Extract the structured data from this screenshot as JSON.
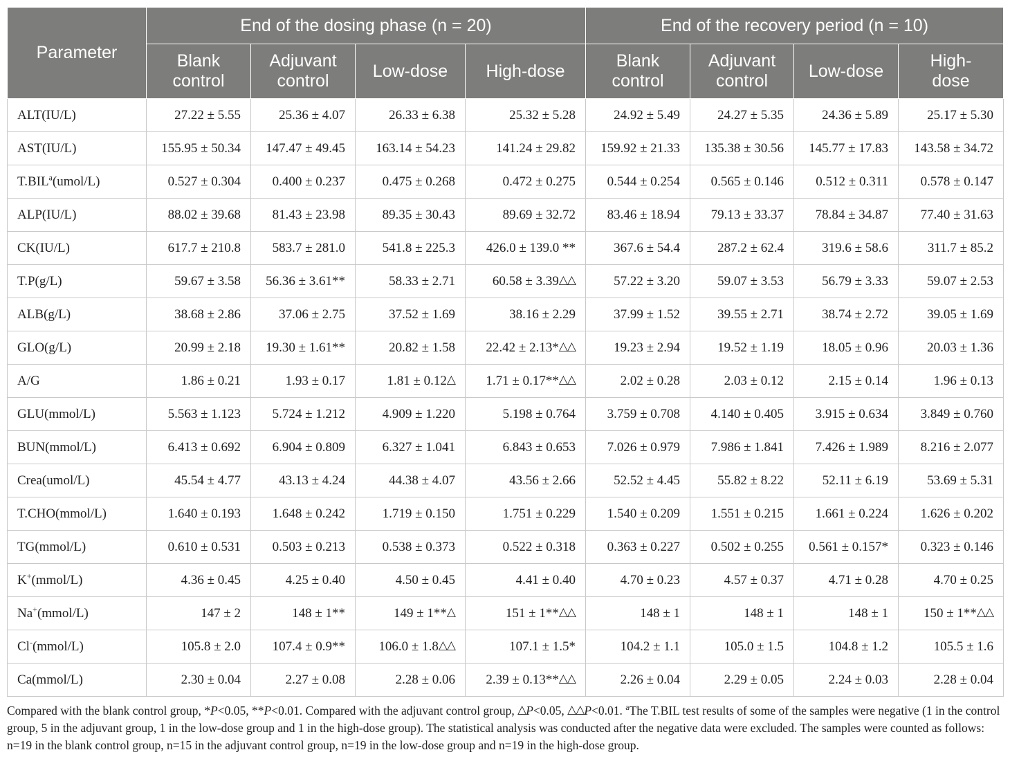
{
  "table": {
    "param_header": "Parameter",
    "group_headers": [
      "End of the dosing phase (n = 20)",
      "End of the recovery period (n = 10)"
    ],
    "sub_headers": [
      [
        "Blank",
        "control"
      ],
      [
        "Adjuvant",
        "control"
      ],
      [
        "Low-dose"
      ],
      [
        "High-dose"
      ],
      [
        "Blank",
        "control"
      ],
      [
        "Adjuvant",
        "control"
      ],
      [
        "Low-dose"
      ],
      [
        "High-",
        "dose"
      ]
    ],
    "rows": [
      {
        "param": "ALT(IU/L)",
        "cells": [
          {
            "v": "27.22 ± 5.55"
          },
          {
            "v": "25.36 ± 4.07"
          },
          {
            "v": "26.33 ± 6.38"
          },
          {
            "v": "25.32 ± 5.28"
          },
          {
            "v": "24.92 ± 5.49"
          },
          {
            "v": "24.27 ± 5.35"
          },
          {
            "v": "24.36 ± 5.89"
          },
          {
            "v": "25.17 ± 5.30"
          }
        ]
      },
      {
        "param": "AST(IU/L)",
        "cells": [
          {
            "v": "155.95 ± 50.34"
          },
          {
            "v": "147.47 ± 49.45"
          },
          {
            "v": "163.14 ± 54.23"
          },
          {
            "v": "141.24 ± 29.82"
          },
          {
            "v": "159.92 ± 21.33"
          },
          {
            "v": "135.38 ± 30.56"
          },
          {
            "v": "145.77 ± 17.83"
          },
          {
            "v": "143.58 ± 34.72"
          }
        ]
      },
      {
        "param": "T.BIL",
        "param_sup": "a",
        "param_suffix": "(umol/L)",
        "cells": [
          {
            "v": "0.527 ± 0.304"
          },
          {
            "v": "0.400 ± 0.237"
          },
          {
            "v": "0.475 ± 0.268"
          },
          {
            "v": "0.472 ± 0.275"
          },
          {
            "v": "0.544 ± 0.254"
          },
          {
            "v": "0.565 ± 0.146"
          },
          {
            "v": "0.512 ± 0.311"
          },
          {
            "v": "0.578 ± 0.147"
          }
        ]
      },
      {
        "param": "ALP(IU/L)",
        "cells": [
          {
            "v": "88.02 ± 39.68"
          },
          {
            "v": "81.43 ± 23.98"
          },
          {
            "v": "89.35 ± 30.43"
          },
          {
            "v": "89.69 ± 32.72"
          },
          {
            "v": "83.46 ± 18.94"
          },
          {
            "v": "79.13 ± 33.37"
          },
          {
            "v": "78.84 ± 34.87"
          },
          {
            "v": "77.40 ± 31.63"
          }
        ]
      },
      {
        "param": "CK(IU/L)",
        "cells": [
          {
            "v": "617.7 ± 210.8"
          },
          {
            "v": "583.7 ± 281.0"
          },
          {
            "v": "541.8 ± 225.3"
          },
          {
            "v": "426.0 ± 139.0 **"
          },
          {
            "v": "367.6 ± 54.4"
          },
          {
            "v": "287.2 ± 62.4"
          },
          {
            "v": "319.6 ± 58.6"
          },
          {
            "v": "311.7 ± 85.2"
          }
        ]
      },
      {
        "param": "T.P(g/L)",
        "cells": [
          {
            "v": "59.67 ± 3.58"
          },
          {
            "v": "56.36 ± 3.61**"
          },
          {
            "v": "58.33 ± 2.71"
          },
          {
            "v": "60.58 ± 3.39",
            "t": "△△"
          },
          {
            "v": "57.22 ± 3.20"
          },
          {
            "v": "59.07 ± 3.53"
          },
          {
            "v": "56.79 ± 3.33"
          },
          {
            "v": "59.07 ± 2.53"
          }
        ]
      },
      {
        "param": "ALB(g/L)",
        "cells": [
          {
            "v": "38.68 ± 2.86"
          },
          {
            "v": "37.06 ± 2.75"
          },
          {
            "v": "37.52 ± 1.69"
          },
          {
            "v": "38.16 ± 2.29"
          },
          {
            "v": "37.99 ± 1.52"
          },
          {
            "v": "39.55 ± 2.71"
          },
          {
            "v": "38.74 ± 2.72"
          },
          {
            "v": "39.05 ± 1.69"
          }
        ]
      },
      {
        "param": "GLO(g/L)",
        "cells": [
          {
            "v": "20.99 ± 2.18"
          },
          {
            "v": "19.30 ± 1.61**"
          },
          {
            "v": "20.82 ± 1.58"
          },
          {
            "v": "22.42 ± 2.13*",
            "t": "△△"
          },
          {
            "v": "19.23 ± 2.94"
          },
          {
            "v": "19.52 ± 1.19"
          },
          {
            "v": "18.05 ± 0.96"
          },
          {
            "v": "20.03 ± 1.36"
          }
        ]
      },
      {
        "param": "A/G",
        "cells": [
          {
            "v": "1.86 ± 0.21"
          },
          {
            "v": "1.93 ± 0.17"
          },
          {
            "v": "1.81 ± 0.12",
            "t": "△"
          },
          {
            "v": "1.71 ± 0.17**",
            "t": "△△"
          },
          {
            "v": "2.02 ± 0.28"
          },
          {
            "v": "2.03 ± 0.12"
          },
          {
            "v": "2.15 ± 0.14"
          },
          {
            "v": "1.96 ± 0.13"
          }
        ]
      },
      {
        "param": "GLU(mmol/L)",
        "cells": [
          {
            "v": "5.563 ± 1.123"
          },
          {
            "v": "5.724 ± 1.212"
          },
          {
            "v": "4.909 ± 1.220"
          },
          {
            "v": "5.198 ± 0.764"
          },
          {
            "v": "3.759 ± 0.708"
          },
          {
            "v": "4.140 ± 0.405"
          },
          {
            "v": "3.915 ± 0.634"
          },
          {
            "v": "3.849 ± 0.760"
          }
        ]
      },
      {
        "param": "BUN(mmol/L)",
        "cells": [
          {
            "v": "6.413 ± 0.692"
          },
          {
            "v": "6.904 ± 0.809"
          },
          {
            "v": "6.327 ± 1.041"
          },
          {
            "v": "6.843 ± 0.653"
          },
          {
            "v": "7.026 ± 0.979"
          },
          {
            "v": "7.986 ± 1.841"
          },
          {
            "v": "7.426 ± 1.989"
          },
          {
            "v": "8.216 ± 2.077"
          }
        ]
      },
      {
        "param": "Crea(umol/L)",
        "cells": [
          {
            "v": "45.54 ± 4.77"
          },
          {
            "v": "43.13 ± 4.24"
          },
          {
            "v": "44.38 ± 4.07"
          },
          {
            "v": "43.56 ± 2.66"
          },
          {
            "v": "52.52 ± 4.45"
          },
          {
            "v": "55.82 ± 8.22"
          },
          {
            "v": "52.11 ± 6.19"
          },
          {
            "v": "53.69 ± 5.31"
          }
        ]
      },
      {
        "param": "T.CHO(mmol/L)",
        "cells": [
          {
            "v": "1.640 ± 0.193"
          },
          {
            "v": "1.648 ± 0.242"
          },
          {
            "v": "1.719 ± 0.150"
          },
          {
            "v": "1.751 ± 0.229"
          },
          {
            "v": "1.540 ± 0.209"
          },
          {
            "v": "1.551 ± 0.215"
          },
          {
            "v": "1.661 ± 0.224"
          },
          {
            "v": "1.626 ± 0.202"
          }
        ]
      },
      {
        "param": "TG(mmol/L)",
        "cells": [
          {
            "v": "0.610 ± 0.531"
          },
          {
            "v": "0.503 ± 0.213"
          },
          {
            "v": "0.538 ± 0.373"
          },
          {
            "v": "0.522 ± 0.318"
          },
          {
            "v": "0.363 ± 0.227"
          },
          {
            "v": "0.502 ± 0.255"
          },
          {
            "v": "0.561 ± 0.157*"
          },
          {
            "v": "0.323 ± 0.146"
          }
        ]
      },
      {
        "param": "K",
        "param_sup": "+",
        "param_suffix": "(mmol/L)",
        "cells": [
          {
            "v": "4.36 ± 0.45"
          },
          {
            "v": "4.25 ± 0.40"
          },
          {
            "v": "4.50 ± 0.45"
          },
          {
            "v": "4.41 ± 0.40"
          },
          {
            "v": "4.70 ± 0.23"
          },
          {
            "v": "4.57 ± 0.37"
          },
          {
            "v": "4.71 ± 0.28"
          },
          {
            "v": "4.70 ± 0.25"
          }
        ]
      },
      {
        "param": "Na",
        "param_sup": "+",
        "param_suffix": "(mmol/L)",
        "cells": [
          {
            "v": "147 ± 2"
          },
          {
            "v": "148 ± 1**"
          },
          {
            "v": "149 ± 1**",
            "t": "△"
          },
          {
            "v": "151 ± 1**",
            "t": "△△"
          },
          {
            "v": "148 ± 1"
          },
          {
            "v": "148 ± 1"
          },
          {
            "v": "148 ± 1"
          },
          {
            "v": "150 ± 1**",
            "t": "△△"
          }
        ]
      },
      {
        "param": "Cl",
        "param_sup": "-",
        "param_suffix": "(mmol/L)",
        "cells": [
          {
            "v": "105.8 ± 2.0"
          },
          {
            "v": "107.4 ± 0.9**"
          },
          {
            "v": "106.0 ± 1.8",
            "t": "△△"
          },
          {
            "v": "107.1 ± 1.5*"
          },
          {
            "v": "104.2 ± 1.1"
          },
          {
            "v": "105.0 ± 1.5"
          },
          {
            "v": "104.8 ± 1.2"
          },
          {
            "v": "105.5 ± 1.6"
          }
        ]
      },
      {
        "param": "Ca(mmol/L)",
        "cells": [
          {
            "v": "2.30 ± 0.04"
          },
          {
            "v": "2.27 ± 0.08"
          },
          {
            "v": "2.28 ± 0.06"
          },
          {
            "v": "2.39 ± 0.13**",
            "t": "△△"
          },
          {
            "v": "2.26 ± 0.04"
          },
          {
            "v": "2.29 ± 0.05"
          },
          {
            "v": "2.24 ± 0.03"
          },
          {
            "v": "2.28 ± 0.04"
          }
        ]
      }
    ]
  },
  "footnote": {
    "p1": "Compared with the blank control group, *",
    "p_sym1": "P",
    "p2": "<0.05, **",
    "p_sym2": "P",
    "p3": "<0.01. Compared with the adjuvant control group, ",
    "tri1": "△",
    "p_sym3": "P",
    "p4": "<0.05, ",
    "tri2": "△△",
    "p_sym4": "P",
    "p5": "<0.01. ",
    "sup_a": "a",
    "p6": "The T.BIL test results of some of the samples were negative (1 in the control group, 5 in the adjuvant group, 1 in the low-dose group and 1 in the high-dose group). The statistical analysis was conducted after the negative data were excluded. The samples were counted as follows: n=19 in the blank control group, n=15 in the adjuvant control group, n=19 in the low-dose group and n=19 in the high-dose group."
  }
}
